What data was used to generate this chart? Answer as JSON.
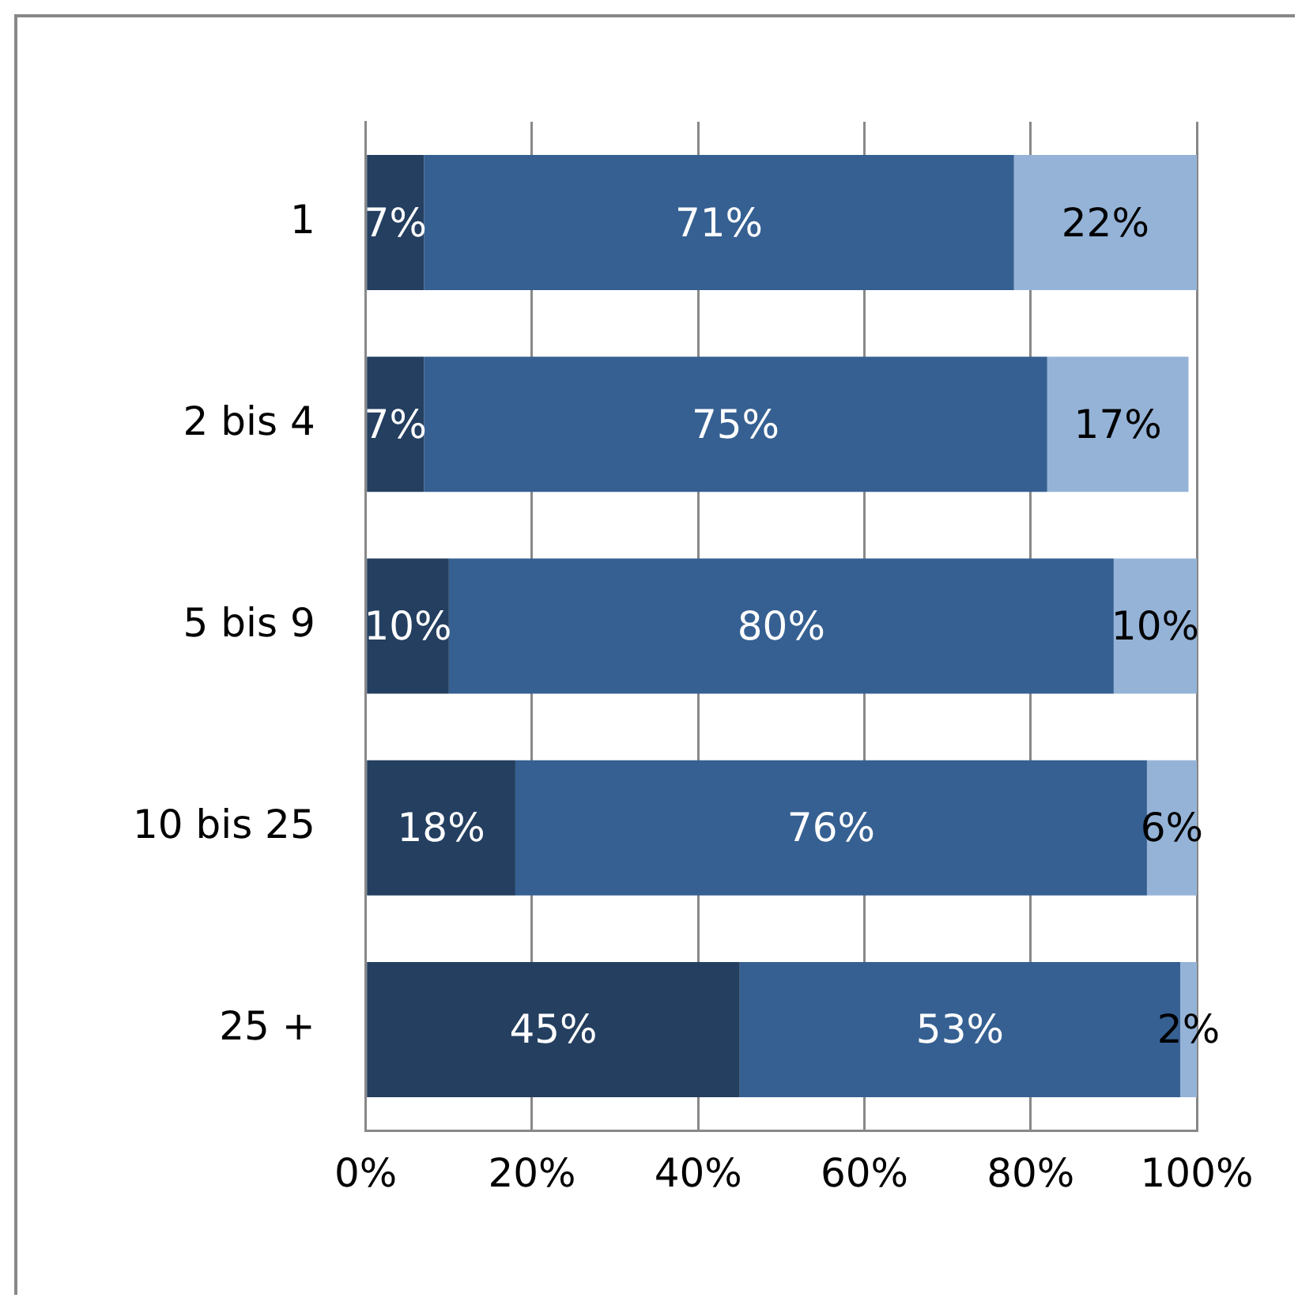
{
  "chart_data": {
    "type": "bar",
    "orientation": "horizontal",
    "stacked": true,
    "grid": "x",
    "legend": false,
    "categories": [
      "1",
      "2 bis 4",
      "5 bis 9",
      "10 bis 25",
      "25 +"
    ],
    "series": [
      {
        "color": "#243f60",
        "values": [
          7,
          7,
          10,
          18,
          45
        ],
        "value_labels": [
          "7%",
          "7%",
          "10%",
          "18%",
          "45%"
        ]
      },
      {
        "color": "#366092",
        "values": [
          71,
          75,
          80,
          76,
          53
        ],
        "value_labels": [
          "71%",
          "75%",
          "80%",
          "76%",
          "53%"
        ]
      },
      {
        "color": "#95b3d7",
        "values": [
          22,
          17,
          10,
          6,
          2
        ],
        "value_labels": [
          "22%",
          "17%",
          "10%",
          "6%",
          "2%"
        ]
      }
    ],
    "xlim": [
      0,
      100
    ],
    "xticks": [
      {
        "value": 0,
        "label": "0%"
      },
      {
        "value": 20,
        "label": "20%"
      },
      {
        "value": 40,
        "label": "40%"
      },
      {
        "value": 60,
        "label": "60%"
      },
      {
        "value": 80,
        "label": "80%"
      },
      {
        "value": 100,
        "label": "100%"
      }
    ]
  }
}
